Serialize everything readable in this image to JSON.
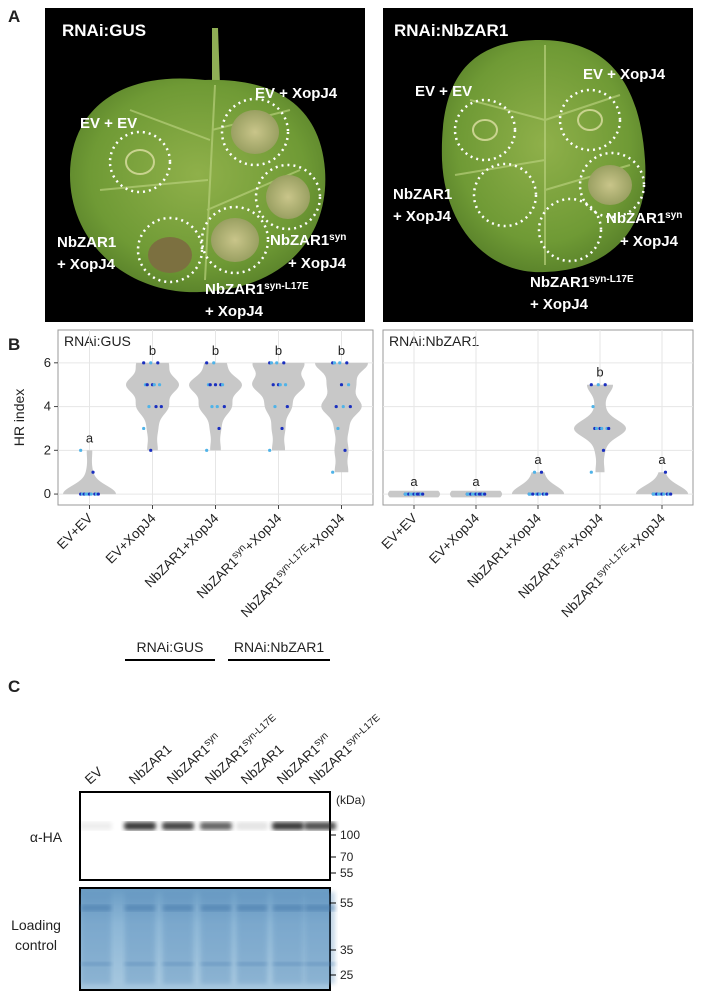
{
  "panel_a": {
    "label": "A",
    "photos": [
      {
        "title": "RNAi:GUS",
        "ev_ev": "EV + EV",
        "ev_xopj4": "EV + XopJ4",
        "zar1": "NbZAR1",
        "zar1_2": "+ XopJ4",
        "syn": "NbZAR1",
        "syn_sup": "syn",
        "syn_2": "+ XopJ4",
        "l17e": "NbZAR1",
        "l17e_sup": "syn-L17E",
        "l17e_2": "+ XopJ4"
      },
      {
        "title": "RNAi:NbZAR1",
        "ev_ev": "EV + EV",
        "ev_xopj4": "EV + XopJ4",
        "zar1": "NbZAR1",
        "zar1_2": "+ XopJ4",
        "syn": "NbZAR1",
        "syn_sup": "syn",
        "syn_2": "+ XopJ4",
        "l17e": "NbZAR1",
        "l17e_sup": "syn-L17E",
        "l17e_2": "+ XopJ4"
      }
    ]
  },
  "panel_b": {
    "label": "B"
  },
  "chart_data": [
    {
      "type": "violin",
      "title": "RNAi:GUS",
      "y_label": "HR index",
      "ylim": [
        -0.5,
        7.5
      ],
      "yticks": [
        0,
        2,
        4,
        6
      ],
      "grid": true,
      "color": "#c8c8c8",
      "categories": [
        {
          "text": "EV+EV"
        },
        {
          "text": "EV+XopJ4"
        },
        {
          "text": "NbZAR1+XopJ4"
        },
        {
          "text": "NbZAR1",
          "sup": "syn",
          "suffix": "+XopJ4"
        },
        {
          "text": "NbZAR1",
          "sup": "syn-L17E",
          "suffix": "+XopJ4"
        }
      ],
      "letters": [
        "a",
        "b",
        "b",
        "b",
        "b"
      ],
      "points": [
        [
          0,
          0,
          0,
          0,
          0,
          0,
          0,
          0,
          0,
          0,
          1,
          2
        ],
        [
          6,
          6,
          6,
          5,
          5,
          5,
          5,
          5,
          4,
          4,
          4,
          3,
          2
        ],
        [
          6,
          6,
          5,
          5,
          5,
          5,
          5,
          4,
          4,
          4,
          3,
          2
        ],
        [
          6,
          6,
          6,
          6,
          5,
          5,
          5,
          5,
          4,
          4,
          3,
          2
        ],
        [
          6,
          6,
          6,
          6,
          5,
          5,
          4,
          4,
          4,
          3,
          2,
          1
        ]
      ]
    },
    {
      "type": "violin",
      "title": "RNAi:NbZAR1",
      "ylim": [
        -0.5,
        7.5
      ],
      "yticks": [
        0,
        2,
        4,
        6
      ],
      "grid": true,
      "color": "#c8c8c8",
      "categories": [
        {
          "text": "EV+EV"
        },
        {
          "text": "EV+XopJ4"
        },
        {
          "text": "NbZAR1+XopJ4"
        },
        {
          "text": "NbZAR1",
          "sup": "syn",
          "suffix": "+XopJ4"
        },
        {
          "text": "NbZAR1",
          "sup": "syn-L17E",
          "suffix": "+XopJ4"
        }
      ],
      "letters": [
        "a",
        "a",
        "a",
        "b",
        "a"
      ],
      "points": [
        [
          0,
          0,
          0,
          0,
          0,
          0,
          0,
          0,
          0,
          0,
          0,
          0
        ],
        [
          0,
          0,
          0,
          0,
          0,
          0,
          0,
          0,
          0,
          0,
          0,
          0
        ],
        [
          0,
          0,
          0,
          0,
          0,
          0,
          0,
          0,
          0,
          1,
          1,
          0
        ],
        [
          5,
          5,
          5,
          4,
          3,
          3,
          3,
          3,
          3,
          3,
          2,
          1
        ],
        [
          0,
          0,
          0,
          0,
          0,
          0,
          0,
          0,
          0,
          0,
          1,
          0
        ]
      ]
    }
  ],
  "panel_c": {
    "label": "C",
    "groups": [
      "RNAi:GUS",
      "RNAi:NbZAR1"
    ],
    "lanes": [
      {
        "text": "EV"
      },
      {
        "text": "NbZAR1"
      },
      {
        "text": "NbZAR1",
        "sup": "syn"
      },
      {
        "text": "NbZAR1",
        "sup": "syn-L17E"
      },
      {
        "text": "NbZAR1"
      },
      {
        "text": "NbZAR1",
        "sup": "syn"
      },
      {
        "text": "NbZAR1",
        "sup": "syn-L17E"
      }
    ],
    "blot_label": "α-HA",
    "loading_label": [
      "Loading",
      "control"
    ],
    "kda": "(kDa)",
    "markers_blot": [
      "100",
      "70",
      "55"
    ],
    "markers_loading": [
      "55",
      "35",
      "25"
    ]
  }
}
